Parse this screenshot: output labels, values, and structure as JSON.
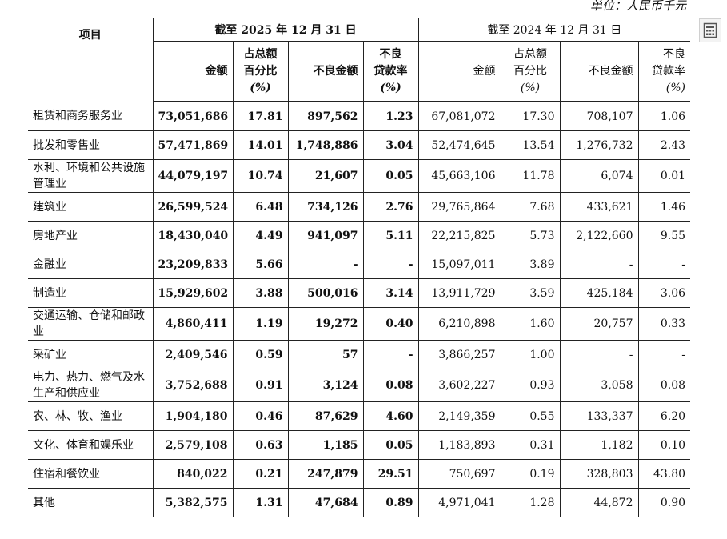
{
  "unit_label": "单位：人民币千元",
  "header": {
    "item": "项目",
    "period_current": "截至 2025 年 12 月 31 日",
    "period_prior": "截至 2024 年 12 月 31 日",
    "amount": "金额",
    "pct_line1": "占总额",
    "pct_line2": "百分比",
    "pct_unit": "(%)",
    "npl_amount": "不良金额",
    "npl_rate_line1": "不良",
    "npl_rate_line2": "贷款率",
    "npl_rate_unit": "(%)",
    "npl_rate_prior": "贷款率"
  },
  "rows": [
    {
      "name": "租赁和商务服务业",
      "a25": "73,051,686",
      "p25": "17.81",
      "n25": "897,562",
      "r25": "1.23",
      "a24": "67,081,072",
      "p24": "17.30",
      "n24": "708,107",
      "r24": "1.06"
    },
    {
      "name": "批发和零售业",
      "a25": "57,471,869",
      "p25": "14.01",
      "n25": "1,748,886",
      "r25": "3.04",
      "a24": "52,474,645",
      "p24": "13.54",
      "n24": "1,276,732",
      "r24": "2.43"
    },
    {
      "name": "水利、环境和公共设施管理业",
      "a25": "44,079,197",
      "p25": "10.74",
      "n25": "21,607",
      "r25": "0.05",
      "a24": "45,663,106",
      "p24": "11.78",
      "n24": "6,074",
      "r24": "0.01"
    },
    {
      "name": "建筑业",
      "a25": "26,599,524",
      "p25": "6.48",
      "n25": "734,126",
      "r25": "2.76",
      "a24": "29,765,864",
      "p24": "7.68",
      "n24": "433,621",
      "r24": "1.46"
    },
    {
      "name": "房地产业",
      "a25": "18,430,040",
      "p25": "4.49",
      "n25": "941,097",
      "r25": "5.11",
      "a24": "22,215,825",
      "p24": "5.73",
      "n24": "2,122,660",
      "r24": "9.55"
    },
    {
      "name": "金融业",
      "a25": "23,209,833",
      "p25": "5.66",
      "n25": "-",
      "r25": "-",
      "a24": "15,097,011",
      "p24": "3.89",
      "n24": "-",
      "r24": "-"
    },
    {
      "name": "制造业",
      "a25": "15,929,602",
      "p25": "3.88",
      "n25": "500,016",
      "r25": "3.14",
      "a24": "13,911,729",
      "p24": "3.59",
      "n24": "425,184",
      "r24": "3.06"
    },
    {
      "name": "交通运输、仓储和邮政业",
      "a25": "4,860,411",
      "p25": "1.19",
      "n25": "19,272",
      "r25": "0.40",
      "a24": "6,210,898",
      "p24": "1.60",
      "n24": "20,757",
      "r24": "0.33"
    },
    {
      "name": "采矿业",
      "a25": "2,409,546",
      "p25": "0.59",
      "n25": "57",
      "r25": "-",
      "a24": "3,866,257",
      "p24": "1.00",
      "n24": "-",
      "r24": "-"
    },
    {
      "name": "电力、热力、燃气及水生产和供应业",
      "a25": "3,752,688",
      "p25": "0.91",
      "n25": "3,124",
      "r25": "0.08",
      "a24": "3,602,227",
      "p24": "0.93",
      "n24": "3,058",
      "r24": "0.08"
    },
    {
      "name": "农、林、牧、渔业",
      "a25": "1,904,180",
      "p25": "0.46",
      "n25": "87,629",
      "r25": "4.60",
      "a24": "2,149,359",
      "p24": "0.55",
      "n24": "133,337",
      "r24": "6.20"
    },
    {
      "name": "文化、体育和娱乐业",
      "a25": "2,579,108",
      "p25": "0.63",
      "n25": "1,185",
      "r25": "0.05",
      "a24": "1,183,893",
      "p24": "0.31",
      "n24": "1,182",
      "r24": "0.10"
    },
    {
      "name": "住宿和餐饮业",
      "a25": "840,022",
      "p25": "0.21",
      "n25": "247,879",
      "r25": "29.51",
      "a24": "750,697",
      "p24": "0.19",
      "n24": "328,803",
      "r24": "43.80"
    },
    {
      "name": "其他",
      "a25": "5,382,575",
      "p25": "1.31",
      "n25": "47,684",
      "r25": "0.89",
      "a24": "4,971,041",
      "p24": "1.28",
      "n24": "44,872",
      "r24": "0.90"
    }
  ],
  "side_button_icon": "calculator-icon"
}
